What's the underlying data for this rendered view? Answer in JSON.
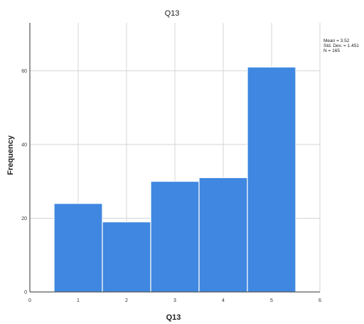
{
  "chart_data": {
    "type": "bar",
    "title": "Q13",
    "xlabel": "Q13",
    "ylabel": "Frequency",
    "x": [
      1,
      2,
      3,
      4,
      5
    ],
    "values": [
      24,
      19,
      30,
      31,
      61
    ],
    "xticks": [
      "0",
      "1",
      "2",
      "3",
      "4",
      "5",
      "6"
    ],
    "yticks": [
      "0",
      "20",
      "40",
      "60"
    ],
    "xlim": [
      0,
      6
    ],
    "ylim": [
      0,
      73
    ],
    "grid": true,
    "stats": {
      "mean": "Mean = 3.52",
      "std_dev": "Std. Dev. = 1.451",
      "n": "N = 165"
    }
  }
}
